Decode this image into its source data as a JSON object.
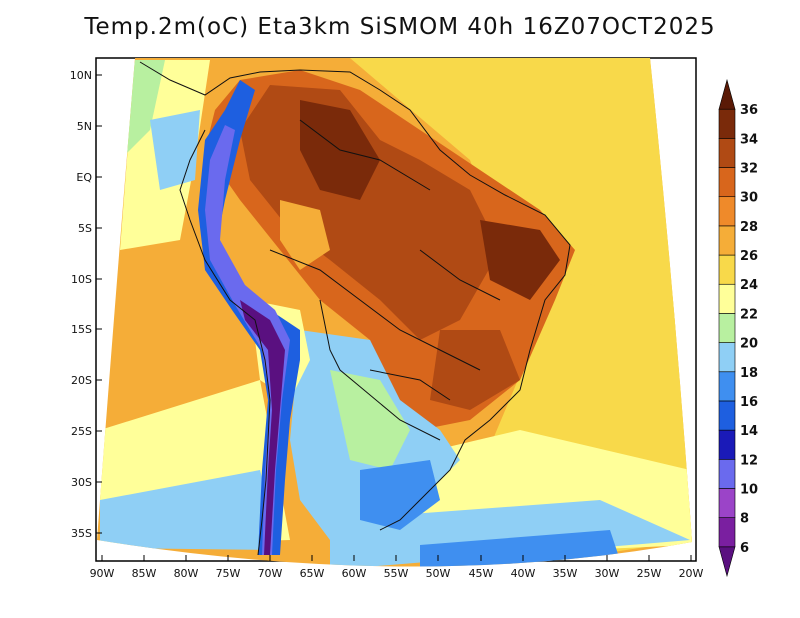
{
  "title": "Temp.2m(oC) Eta3km SiSMOM 40h 16Z07OCT2025",
  "map": {
    "variable": "2m temperature",
    "units": "°C",
    "lon_labels": [
      "90W",
      "85W",
      "80W",
      "75W",
      "70W",
      "65W",
      "60W",
      "55W",
      "50W",
      "45W",
      "40W",
      "35W",
      "30W",
      "25W",
      "20W"
    ],
    "lat_labels": [
      "10N",
      "5N",
      "EQ",
      "5S",
      "10S",
      "15S",
      "20S",
      "25S",
      "30S",
      "35S"
    ]
  },
  "colorbar": {
    "levels": [
      "6",
      "8",
      "10",
      "12",
      "14",
      "16",
      "18",
      "20",
      "22",
      "24",
      "26",
      "28",
      "30",
      "32",
      "34",
      "36"
    ],
    "colors": [
      "#5a1080",
      "#7a1fa0",
      "#9b44c8",
      "#6a6aee",
      "#1a1ab8",
      "#1e5fe0",
      "#3f8ff0",
      "#8fcff5",
      "#b8f0a0",
      "#ffff99",
      "#f8d94a",
      "#f5ad38",
      "#ef8a2a",
      "#d8661c",
      "#b04a14",
      "#7a2a0a",
      "#5a1a06"
    ]
  }
}
